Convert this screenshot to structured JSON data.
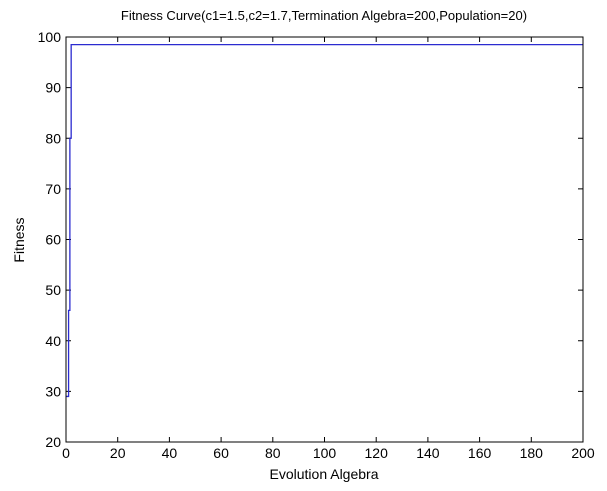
{
  "chart_data": {
    "type": "line",
    "title": "Fitness Curve(c1=1.5,c2=1.7,Termination Algebra=200,Population=20)",
    "xlabel": "Evolution Algebra",
    "ylabel": "Fitness",
    "xlim": [
      0,
      200
    ],
    "ylim": [
      20,
      100
    ],
    "xticks": [
      0,
      20,
      40,
      60,
      80,
      100,
      120,
      140,
      160,
      180,
      200
    ],
    "yticks": [
      20,
      30,
      40,
      50,
      60,
      70,
      80,
      90,
      100
    ],
    "grid": false,
    "legend": "none",
    "colors": {
      "line": "#2b2bd0",
      "axes": "#000000",
      "background": "#ffffff"
    },
    "series": [
      {
        "x": [
          0,
          1,
          1,
          1.5,
          1.5,
          2,
          2,
          200
        ],
        "y": [
          29,
          29,
          46,
          46,
          80,
          80,
          98.5,
          98.5
        ]
      }
    ]
  }
}
